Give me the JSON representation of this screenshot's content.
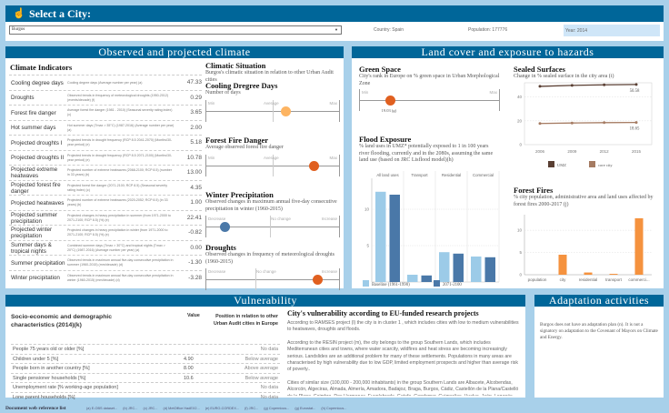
{
  "header": {
    "title": "Select a City:",
    "icon": "pointer-hand-icon",
    "city": "Burgos",
    "country": "Country: Spain",
    "population": "Population: 177776",
    "year": "Year: 2014"
  },
  "colors": {
    "header": "#006699",
    "orange": "#f5923e",
    "darkorange": "#e06020",
    "lightorange": "#fdb462",
    "blue": "#4a78a8",
    "lightblue": "#9ccbe8",
    "umz": "#5a3f33",
    "core": "#a57b62"
  },
  "climate": {
    "title": "Observed and projected climate",
    "indicators_title": "Climate Indicators",
    "rows": [
      {
        "label": "Cooling degree days",
        "desc": "Cooling degree days (Average number per year) (a)",
        "value": "47.33"
      },
      {
        "label": "Droughts",
        "desc": "Observed trends in frequency of meteorological droughts (1950-2012) (events/decade) (f)",
        "value": "0.29"
      },
      {
        "label": "Forest fire danger",
        "desc": "Average forest fire danger (1981 - 2010) (Seasonal severity rating index) (c)",
        "value": "3.65"
      },
      {
        "label": "Hot summer days",
        "desc": "Hot summer days (Tmax > 35°C) (1987-2016) (Average number per year) (a)",
        "value": "2.00"
      },
      {
        "label": "Projected droughts I",
        "desc": "Projected trends in drought frequency (RCP 8.5 2041-2070) (Months/30-year period) (e)",
        "value": "5.18"
      },
      {
        "label": "Projected droughts II",
        "desc": "Projected trends in drought frequency (RCP 8.5 2071-2100) (Months/30-year period) (e)",
        "value": "10.78"
      },
      {
        "label": "Projected extreme heatwaves",
        "desc": "Projected number of extreme heatwaves (2068-2100; RCP 8.5) (number in 33 years) (b)",
        "value": "13.00"
      },
      {
        "label": "Projected forest fire danger",
        "desc": "Projected forest fire danger (2071-2100; RCP 8.5) (Seasonal severity rating index) (c)",
        "value": "4.35"
      },
      {
        "label": "Projected heatwaves",
        "desc": "Projected number of extreme heatwaves (2020-2052; RCP 8.5) (in 33 years) (b)",
        "value": "1.00"
      },
      {
        "label": "Projected summer precipitation",
        "desc": "Projected changes in heavy precipitation in summer (from 1971-2000 to 2071-2100; RCP 8.5) (%) (e)",
        "value": "22.41"
      },
      {
        "label": "Projected winter precipitation",
        "desc": "Projected changes in heavy precipitation in winter (from 1971-2000 to 2071-2100; RCP 8.5) (%) (e)",
        "value": "-0.82"
      },
      {
        "label": "Summer days & tropical nights",
        "desc": "Combined summer days (Tmax > 30°C) and tropical nights (Tmax > 20°C) (1987-2016) (Average number per year) (a)",
        "value": "0.00"
      },
      {
        "label": "Summer precipitation",
        "desc": "Observed trends in maximum annual five-day consecutive precipitation in summer (1960-2015) (mm/decade) (d)",
        "value": "-1.30"
      },
      {
        "label": "Winter precipitation",
        "desc": "Observed trends in maximum annual five-day consecutive precipitation in winter (1960-2015) (mm/decade) (d)",
        "value": "-3.28"
      }
    ],
    "situation_title": "Climatic Situation",
    "situation_sub": "Burgos's climatic situation in relation to other Urban Audit cities",
    "sliders": [
      {
        "title": "Cooling Dregree Days",
        "sub": "Number of days",
        "labels": [
          "Min",
          "Average",
          "Max"
        ],
        "position": 0.6,
        "color": "#fdb462"
      },
      {
        "title": "Forest Fire Danger",
        "sub": "Average observed forest fire danger",
        "labels": [
          "Min",
          "Average",
          "Max"
        ],
        "position": 0.81,
        "color": "#e06020"
      },
      {
        "title": "Winter Precipitation",
        "sub": "Observed changes in maximum annual five-day consecutive precipitation in winter (1960-2015)",
        "labels": [
          "Decrease",
          "No change",
          "Increase"
        ],
        "position": 0.14,
        "color": "#4a78a8"
      },
      {
        "title": "Droughts",
        "sub": "Observed changes in frequency of meteorological droughts (1960-2015)",
        "labels": [
          "Decrease",
          "No change",
          "Increase"
        ],
        "position": 0.84,
        "color": "#e06020"
      }
    ]
  },
  "land": {
    "title": "Land cover and exposure to hazards",
    "green": {
      "title": "Green Space",
      "sub": "City's rank in Europe on % green space in Urban Morphological Zone",
      "min": "Min",
      "max": "Max",
      "position": 0.22,
      "value_label": "19.03 (g)"
    },
    "flood": {
      "title": "Flood Exposure",
      "sub": "% land uses in UMZ* potentially exposed to 1 in 100 years river flooding, currently and in the 2080s, assuming the same land use (based on JRC Lisflood model)(h)"
    },
    "sealed": {
      "title": "Sealed Surfaces",
      "sub": "Change in % sealed surface in the city area (i)"
    },
    "fires": {
      "title": "Forest Fires",
      "sub": "% city population, administrative area and land uses affected by forest fires 2000-2017 (j)"
    }
  },
  "chart_data": [
    {
      "type": "bar",
      "facets": [
        "All land uses",
        "Transport",
        "Residential",
        "Commercial"
      ],
      "series": [
        {
          "name": "Baseline (1961-1990)",
          "values": [
            12.4,
            1.0,
            4.1,
            3.5
          ]
        },
        {
          "name": "2071-2100",
          "values": [
            12.0,
            0.9,
            3.9,
            3.4
          ]
        }
      ],
      "yticks": [
        0,
        5,
        10
      ],
      "ylim": [
        0,
        13
      ],
      "legend": "bottom"
    },
    {
      "type": "line",
      "x": [
        2006,
        2009,
        2012,
        2015
      ],
      "series": [
        {
          "name": "UMZ",
          "values": [
            49.0,
            49.8,
            50.3,
            50.58
          ]
        },
        {
          "name": "core city",
          "values": [
            17.8,
            18.2,
            18.5,
            18.65
          ]
        }
      ],
      "end_labels": [
        "50.58",
        "18.65"
      ],
      "yticks": [
        0,
        20,
        40
      ],
      "ylim": [
        0,
        52
      ],
      "legend": "bottom",
      "grid": true
    },
    {
      "type": "bar",
      "categories": [
        "population",
        "city",
        "residential",
        "transport",
        "commerci..."
      ],
      "values": [
        0,
        4.5,
        0.5,
        0.2,
        12.7
      ],
      "yticks": [
        0,
        5,
        10
      ],
      "ylim": [
        0,
        13.5
      ],
      "grid": true
    }
  ],
  "vuln": {
    "title": "Vulnerability",
    "table_title": "Socio-economic and demographic characteristics (2014)(k)",
    "col_value": "Value",
    "col_position": "Position in relation to other Urban Audit cities in Europe",
    "rows": [
      {
        "label": "People 75 years old or older [%]",
        "value": "",
        "position": "No data"
      },
      {
        "label": "Children under 5 [%]",
        "value": "4.90",
        "position": "Below average"
      },
      {
        "label": "People born in another country [%]",
        "value": "8.00",
        "position": "Above average"
      },
      {
        "label": "Single pensioner households [%]",
        "value": "10.6",
        "position": "Below average"
      },
      {
        "label": "Unemployment rate [% working-age population]",
        "value": "",
        "position": "No data"
      },
      {
        "label": "Lone parent households [%]",
        "value": "",
        "position": "No data"
      }
    ],
    "research_title": "City's vulnerability according to EU-funded research projects",
    "paras": [
      "According to RAMSES project (l) the city is in cluster 1 , which includes cities with low to medium vulnerabilities to heatwaves, droughts and floods.",
      "According to the RESIN project (m), the city belongs to the group Southern Lands, which includes Mediterranean cities and towns, where water scarcity, wildfires and heat stress are becoming increasingly serious. Landslides are an additional problem for many of these settlements. Populations in many areas are characterised by high vulnerability due to low GDP, limited employment prospects and higher than average risk of poverty..",
      "Cities of similar size (100,000 - 200,000 inhabitants) in the group Southern Lands are Albacete, Alcobendas, Alcorcón, Algeciras, Almada, Almería, Amadora, Badajoz, Braga, Burgos, Cádiz, Castellón de la Plana/Castelló de la Plana, Coimbra, Dos Hermanas, Fuenlabrada, Getafe, Gondomar, Guimarães, Huelva, Jaén, Leganés, León, Logroño, Marbella, Matosinhos, Odivelas, Ourense, Pamplona/Iruña, Parla, Reus, Salamanca, Seixal, Setúbal, Tarragona,"
    ]
  },
  "adapt": {
    "title": "Adaptation activities",
    "text": "Burgos does not have an adaptation plan (n). It is not a signatory on adaptation to the Covenant of Mayors on Climate and Energy."
  },
  "footer": {
    "title": "Document web reference list",
    "links": [
      "(a) E-OBS dataset...",
      "(b) JRC...",
      "(c) JRC...",
      "(d) MetOffice HadEX2...",
      "(e) EURO-CORDEX...",
      "(f) JRC...",
      "(g) Copernicus...",
      "(g) Eurostat...",
      "(h) Copernicus..."
    ]
  }
}
